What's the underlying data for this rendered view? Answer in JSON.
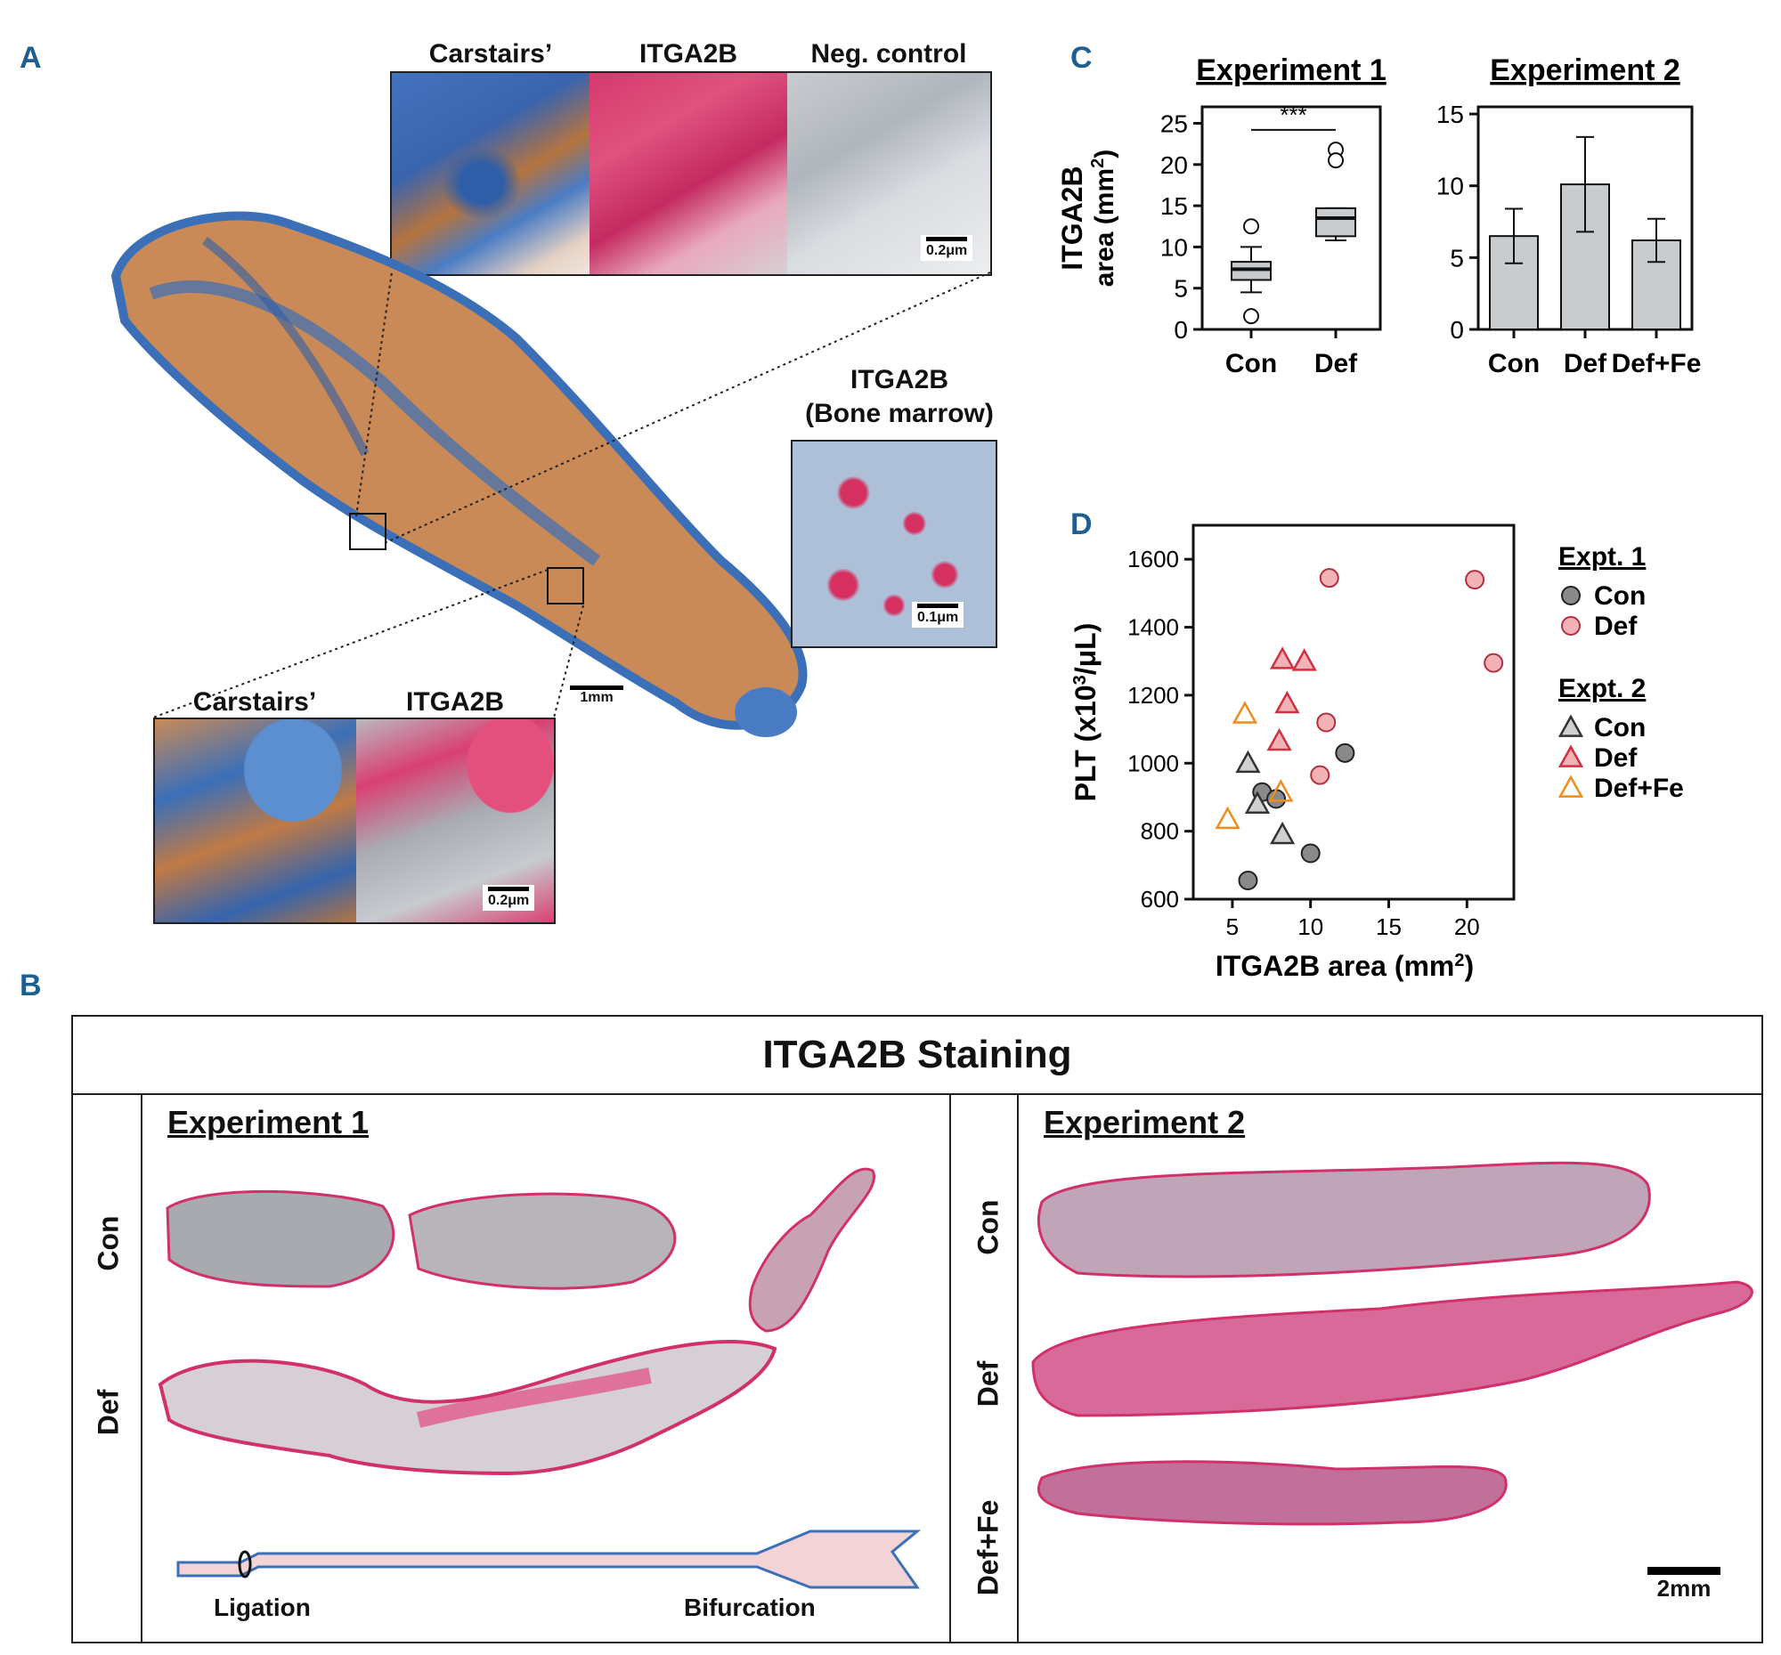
{
  "panel_letters": {
    "a": "A",
    "b": "B",
    "c": "C",
    "d": "D"
  },
  "panel_a": {
    "top_insets": [
      "Carstairs’",
      "ITGA2B",
      "Neg. control"
    ],
    "top_scale": "0.2μm",
    "bone_marrow_title": [
      "ITGA2B",
      "(Bone marrow)"
    ],
    "bone_marrow_scale": "0.1μm",
    "main_scale": "1mm",
    "bottom_insets": [
      "Carstairs’",
      "ITGA2B"
    ],
    "bottom_scale": "0.2μm",
    "colors": {
      "carstairs_blue": "#3b6fb8",
      "carstairs_orange": "#c98a57",
      "itga2b_pink": "#d8306a",
      "neg_gray": "#bfc4c8"
    }
  },
  "panel_b": {
    "title": "ITGA2B Staining",
    "experiment1": "Experiment 1",
    "experiment2": "Experiment 2",
    "row_labels_left": [
      "Con",
      "Def"
    ],
    "row_labels_right": [
      "Con",
      "Def",
      "Def+Fe"
    ],
    "diagram_labels": {
      "left": "Ligation",
      "right": "Bifurcation"
    },
    "scale": "2mm"
  },
  "chart_data": [
    {
      "type": "box",
      "title": "Experiment 1",
      "ylabel": "ITGA2B area (mm2)",
      "ylabel_lines": [
        "ITGA2B",
        "area (mm"
      ],
      "categories": [
        "Con",
        "Def"
      ],
      "ylim": [
        0,
        27
      ],
      "yticks": [
        0,
        5,
        10,
        15,
        20,
        25
      ],
      "boxes": [
        {
          "name": "Con",
          "whisker_low": 4.5,
          "q1": 6,
          "median": 7.3,
          "q3": 8.2,
          "whisker_high": 10,
          "outliers": [
            12.5,
            1.6
          ]
        },
        {
          "name": "Def",
          "whisker_low": 10.8,
          "q1": 11.3,
          "median": 13.5,
          "q3": 14.7,
          "whisker_high": 14.7,
          "outliers": [
            21.8,
            20.5
          ]
        }
      ],
      "significance": "***"
    },
    {
      "type": "bar",
      "title": "Experiment  2",
      "categories": [
        "Con",
        "Def",
        "Def+Fe"
      ],
      "values": [
        6.5,
        10.1,
        6.2
      ],
      "errors": [
        1.9,
        3.3,
        1.5
      ],
      "ylim": [
        0,
        15.5
      ],
      "yticks": [
        0,
        5,
        10,
        15
      ]
    },
    {
      "type": "scatter",
      "xlabel": "ITGA2B area (mm",
      "ylabel": "PLT (x10",
      "ylabel_suffix": "/μL)",
      "xlim": [
        2.5,
        23
      ],
      "ylim": [
        600,
        1700
      ],
      "xticks": [
        5,
        10,
        15,
        20
      ],
      "yticks": [
        600,
        800,
        1000,
        1200,
        1400,
        1600
      ],
      "legend_groups": [
        "Expt. 1",
        "Expt. 2"
      ],
      "series": [
        {
          "name": "Con",
          "group": "Expt. 1",
          "marker": "circle",
          "fill": "#8a8a8a",
          "stroke": "#222222",
          "points": [
            [
              6.9,
              915
            ],
            [
              7.8,
              895
            ],
            [
              12.2,
              1030
            ],
            [
              10.0,
              735
            ],
            [
              6.0,
              655
            ]
          ]
        },
        {
          "name": "Def",
          "group": "Expt. 1",
          "marker": "circle",
          "fill": "#f3b2b6",
          "stroke": "#b03040",
          "points": [
            [
              11.2,
              1545
            ],
            [
              20.5,
              1540
            ],
            [
              21.7,
              1295
            ],
            [
              11.0,
              1120
            ],
            [
              10.6,
              965
            ]
          ]
        },
        {
          "name": "Con",
          "group": "Expt. 2",
          "marker": "triangle",
          "fill": "#d0d0d0",
          "stroke": "#333333",
          "points": [
            [
              6.0,
              1000
            ],
            [
              6.6,
              880
            ],
            [
              8.2,
              790
            ]
          ]
        },
        {
          "name": "Def",
          "group": "Expt. 2",
          "marker": "triangle",
          "fill": "#f3b2b6",
          "stroke": "#d03040",
          "points": [
            [
              8.2,
              1305
            ],
            [
              9.6,
              1300
            ],
            [
              8.5,
              1175
            ],
            [
              8.0,
              1065
            ]
          ]
        },
        {
          "name": "Def+Fe",
          "group": "Expt. 2",
          "marker": "triangle",
          "fill": "none",
          "stroke": "#f08c1c",
          "points": [
            [
              5.8,
              1145
            ],
            [
              4.7,
              835
            ],
            [
              8.1,
              915
            ]
          ]
        }
      ]
    }
  ]
}
